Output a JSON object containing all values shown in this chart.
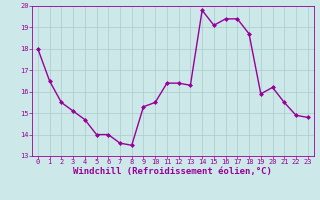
{
  "x": [
    0,
    1,
    2,
    3,
    4,
    5,
    6,
    7,
    8,
    9,
    10,
    11,
    12,
    13,
    14,
    15,
    16,
    17,
    18,
    19,
    20,
    21,
    22,
    23
  ],
  "y": [
    18.0,
    16.5,
    15.5,
    15.1,
    14.7,
    14.0,
    14.0,
    13.6,
    13.5,
    15.3,
    15.5,
    16.4,
    16.4,
    16.3,
    19.8,
    19.1,
    19.4,
    19.4,
    18.7,
    15.9,
    16.2,
    15.5,
    14.9,
    14.8
  ],
  "line_color": "#990099",
  "marker": "D",
  "marker_size": 2.0,
  "bg_color": "#cce8e8",
  "grid_color": "#aacccc",
  "xlabel": "Windchill (Refroidissement éolien,°C)",
  "xlabel_color": "#990099",
  "tick_color": "#990099",
  "label_color": "#990099",
  "ylim": [
    13,
    20
  ],
  "xlim_min": -0.5,
  "xlim_max": 23.5,
  "yticks": [
    13,
    14,
    15,
    16,
    17,
    18,
    19,
    20
  ],
  "xticks": [
    0,
    1,
    2,
    3,
    4,
    5,
    6,
    7,
    8,
    9,
    10,
    11,
    12,
    13,
    14,
    15,
    16,
    17,
    18,
    19,
    20,
    21,
    22,
    23
  ],
  "tick_fontsize": 5.0,
  "xlabel_fontsize": 6.5,
  "linewidth": 1.0
}
